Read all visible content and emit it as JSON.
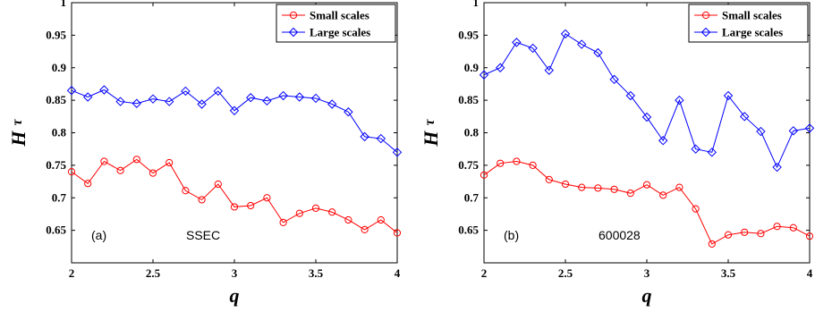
{
  "chart_data": [
    {
      "type": "line",
      "panel_label": "(a)",
      "annotation": "SSEC",
      "xlabel": "q",
      "ylabel": "H",
      "ylabel_sub": "τ",
      "xlim": [
        2,
        4
      ],
      "ylim": [
        0.6,
        1.0
      ],
      "x_ticks": [
        "2",
        "2.5",
        "3",
        "3.5",
        "4"
      ],
      "y_ticks": [
        "0.65",
        "0.7",
        "0.75",
        "0.8",
        "0.85",
        "0.9",
        "0.95",
        "1"
      ],
      "legend_position": "top-right",
      "x": [
        2,
        2.1,
        2.2,
        2.3,
        2.4,
        2.5,
        2.6,
        2.7,
        2.8,
        2.9,
        3,
        3.1,
        3.2,
        3.3,
        3.4,
        3.5,
        3.6,
        3.7,
        3.8,
        3.9,
        4
      ],
      "series": [
        {
          "name": "Small scales",
          "color": "#ff0000",
          "marker": "circle",
          "values": [
            0.74,
            0.722,
            0.756,
            0.742,
            0.759,
            0.738,
            0.754,
            0.711,
            0.697,
            0.721,
            0.686,
            0.688,
            0.7,
            0.662,
            0.676,
            0.684,
            0.678,
            0.666,
            0.651,
            0.666,
            0.646
          ]
        },
        {
          "name": "Large scales",
          "color": "#0000ff",
          "marker": "diamond",
          "values": [
            0.865,
            0.855,
            0.866,
            0.848,
            0.845,
            0.852,
            0.848,
            0.864,
            0.844,
            0.864,
            0.834,
            0.854,
            0.849,
            0.857,
            0.855,
            0.853,
            0.844,
            0.832,
            0.794,
            0.791,
            0.77
          ]
        }
      ]
    },
    {
      "type": "line",
      "panel_label": "(b)",
      "annotation": "600028",
      "xlabel": "q",
      "ylabel": "H",
      "ylabel_sub": "τ",
      "xlim": [
        2,
        4
      ],
      "ylim": [
        0.6,
        1.0
      ],
      "x_ticks": [
        "2",
        "2.5",
        "3",
        "3.5",
        "4"
      ],
      "y_ticks": [
        "0.65",
        "0.7",
        "0.75",
        "0.8",
        "0.85",
        "0.9",
        "0.95",
        "1"
      ],
      "legend_position": "top-right",
      "x": [
        2,
        2.1,
        2.2,
        2.3,
        2.4,
        2.5,
        2.6,
        2.7,
        2.8,
        2.9,
        3,
        3.1,
        3.2,
        3.3,
        3.4,
        3.5,
        3.6,
        3.7,
        3.8,
        3.9,
        4
      ],
      "series": [
        {
          "name": "Small scales",
          "color": "#ff0000",
          "marker": "circle",
          "values": [
            0.735,
            0.753,
            0.756,
            0.75,
            0.728,
            0.721,
            0.716,
            0.715,
            0.713,
            0.707,
            0.72,
            0.704,
            0.716,
            0.683,
            0.629,
            0.643,
            0.647,
            0.645,
            0.656,
            0.654,
            0.641
          ]
        },
        {
          "name": "Large scales",
          "color": "#0000ff",
          "marker": "diamond",
          "values": [
            0.889,
            0.9,
            0.939,
            0.93,
            0.896,
            0.952,
            0.936,
            0.923,
            0.882,
            0.857,
            0.824,
            0.788,
            0.85,
            0.775,
            0.77,
            0.857,
            0.825,
            0.802,
            0.747,
            0.803,
            0.807
          ]
        }
      ]
    }
  ]
}
